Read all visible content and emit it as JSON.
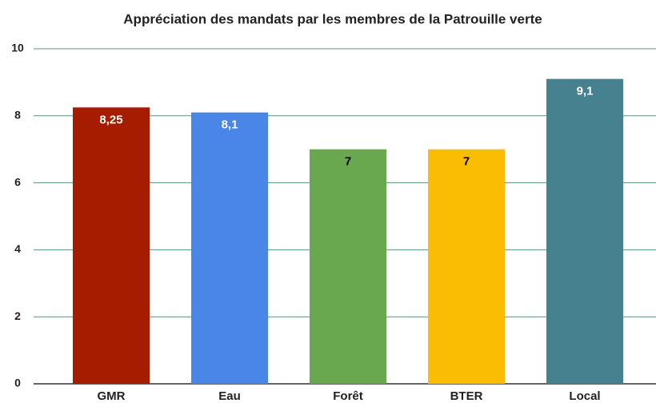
{
  "chart_data": {
    "type": "bar",
    "title": "Appréciation des mandats par les membres de la Patrouille verte",
    "categories": [
      "GMR",
      "Eau",
      "Forêt",
      "BTER",
      "Local"
    ],
    "values": [
      8.25,
      8.1,
      7,
      7,
      9.1
    ],
    "value_labels": [
      "8,25",
      "8,1",
      "7",
      "7",
      "9,1"
    ],
    "colors": [
      "#a61c00",
      "#4a86e8",
      "#6aa84f",
      "#fbbc04",
      "#45818e"
    ],
    "label_colors": [
      "#ffffff",
      "#ffffff",
      "#000000",
      "#000000",
      "#ffffff"
    ],
    "ylim": [
      0,
      10
    ],
    "yticks": [
      0,
      2,
      4,
      6,
      8,
      10
    ],
    "grid": true
  }
}
